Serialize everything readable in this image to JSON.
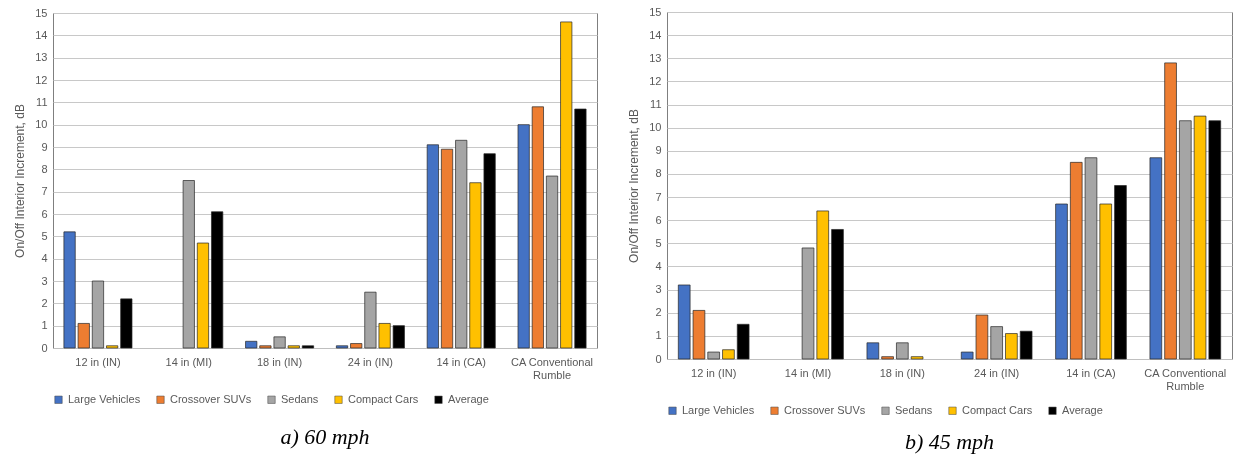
{
  "chart_data": [
    {
      "type": "bar",
      "title": "a) 60 mph",
      "ylabel": "On/Off Interior Increment, dB",
      "categories": [
        "12 in (IN)",
        "14 in (MI)",
        "18 in (IN)",
        "24 in (IN)",
        "14 in (CA)",
        "CA Conventional Rumble"
      ],
      "ylim": [
        0,
        15
      ],
      "yticks": [
        0,
        1,
        2,
        3,
        4,
        5,
        6,
        7,
        8,
        9,
        10,
        11,
        12,
        13,
        14,
        15
      ],
      "grid": true,
      "legend": "bottom",
      "series": [
        {
          "name": "Large Vehicles",
          "color": "#4472c4",
          "values": [
            5.2,
            null,
            0.3,
            0.1,
            9.1,
            10.0
          ]
        },
        {
          "name": "Crossover SUVs",
          "color": "#ed7d31",
          "values": [
            1.1,
            null,
            0.1,
            0.2,
            8.9,
            10.8
          ]
        },
        {
          "name": "Sedans",
          "color": "#a5a5a5",
          "values": [
            3.0,
            7.5,
            0.5,
            2.5,
            9.3,
            7.7
          ]
        },
        {
          "name": "Compact Cars",
          "color": "#ffc000",
          "values": [
            0.1,
            4.7,
            0.1,
            1.1,
            7.4,
            14.6
          ]
        },
        {
          "name": "Average",
          "color": "#000000",
          "values": [
            2.2,
            6.1,
            0.1,
            1.0,
            8.7,
            10.7
          ]
        }
      ]
    },
    {
      "type": "bar",
      "title": "b) 45 mph",
      "ylabel": "On/Off Interior Increment, dB",
      "categories": [
        "12 in (IN)",
        "14 in (MI)",
        "18 in (IN)",
        "24 in (IN)",
        "14 in (CA)",
        "CA Conventional Rumble"
      ],
      "ylim": [
        0,
        15
      ],
      "yticks": [
        0,
        1,
        2,
        3,
        4,
        5,
        6,
        7,
        8,
        9,
        10,
        11,
        12,
        13,
        14,
        15
      ],
      "grid": true,
      "legend": "bottom",
      "series": [
        {
          "name": "Large Vehicles",
          "color": "#4472c4",
          "values": [
            3.2,
            null,
            0.7,
            0.3,
            6.7,
            8.7
          ]
        },
        {
          "name": "Crossover SUVs",
          "color": "#ed7d31",
          "values": [
            2.1,
            null,
            0.1,
            1.9,
            8.5,
            12.8
          ]
        },
        {
          "name": "Sedans",
          "color": "#a5a5a5",
          "values": [
            0.3,
            4.8,
            0.7,
            1.4,
            8.7,
            10.3
          ]
        },
        {
          "name": "Compact Cars",
          "color": "#ffc000",
          "values": [
            0.4,
            6.4,
            0.1,
            1.1,
            6.7,
            10.5
          ]
        },
        {
          "name": "Average",
          "color": "#000000",
          "values": [
            1.5,
            5.6,
            null,
            1.2,
            7.5,
            10.3
          ]
        }
      ]
    }
  ]
}
